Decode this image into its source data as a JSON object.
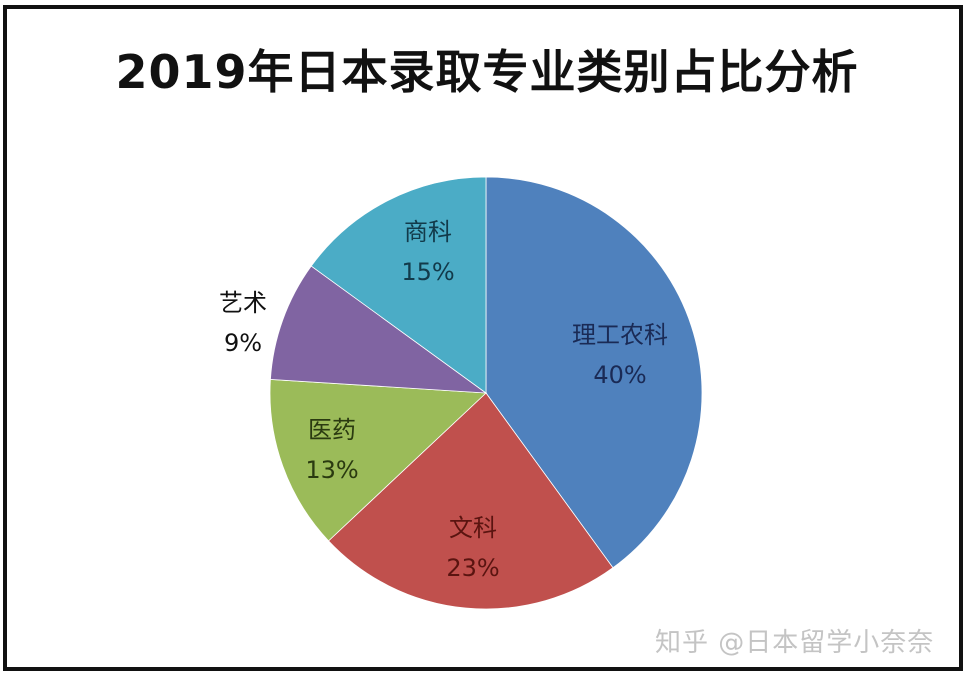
{
  "chart_data": {
    "type": "pie",
    "title": "2019年日本录取专业类别占比分析",
    "categories": [
      "理工农科",
      "文科",
      "医药",
      "艺术",
      "商科"
    ],
    "values": [
      40,
      23,
      13,
      9,
      15
    ],
    "unit": "%",
    "colors": [
      "#4f81bd",
      "#c0504d",
      "#9bbb59",
      "#8064a2",
      "#4bacc6"
    ],
    "label_colors": [
      "#1a2a55",
      "#5a1410",
      "#2a3a10",
      "#111111",
      "#123a4a"
    ],
    "start_angle_deg": 0,
    "direction": "clockwise",
    "legend": "none",
    "data_labels": [
      "理工农科\n40%",
      "文科\n23%",
      "医药\n13%",
      "艺术\n9%",
      "商科\n15%"
    ]
  },
  "title": "2019年日本录取专业类别占比分析",
  "slices": [
    {
      "name": "理工农科",
      "pct": "40%"
    },
    {
      "name": "文科",
      "pct": "23%"
    },
    {
      "name": "医药",
      "pct": "13%"
    },
    {
      "name": "艺术",
      "pct": "9%"
    },
    {
      "name": "商科",
      "pct": "15%"
    }
  ],
  "watermark": "知乎 @日本留学小奈奈"
}
